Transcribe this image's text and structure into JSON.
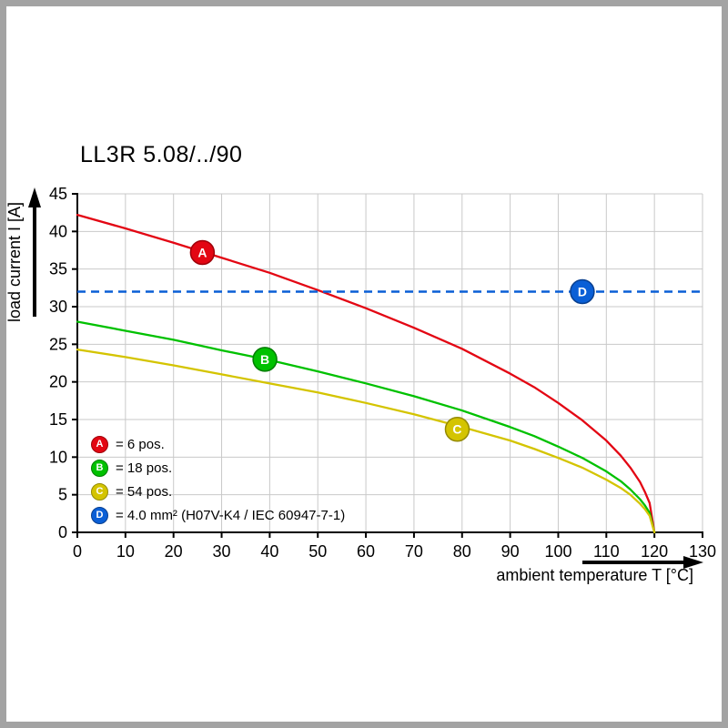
{
  "page": {
    "title": "LL3R 5.08/../90"
  },
  "chart_data": {
    "type": "line",
    "title": "LL3R 5.08/../90",
    "xlabel": "ambient temperature T [°C]",
    "ylabel": "load current I [A]",
    "xlim": [
      0,
      130
    ],
    "ylim": [
      0,
      45
    ],
    "x_ticks": [
      0,
      10,
      20,
      30,
      40,
      50,
      60,
      70,
      80,
      90,
      100,
      110,
      120,
      130
    ],
    "y_ticks": [
      0,
      5,
      10,
      15,
      20,
      25,
      30,
      35,
      40,
      45
    ],
    "grid": true,
    "grid_color": "#c9c9c9",
    "legend_position": "lower-left-inside",
    "series": [
      {
        "name": "A",
        "label": "= 6 pos.",
        "color": "#e30613",
        "edge": "#9e0009",
        "x": [
          0,
          10,
          20,
          30,
          40,
          50,
          60,
          70,
          80,
          90,
          95,
          100,
          105,
          110,
          113,
          115,
          117,
          118,
          119,
          120
        ],
        "y": [
          42.2,
          40.4,
          38.5,
          36.5,
          34.5,
          32.2,
          29.8,
          27.2,
          24.4,
          21.1,
          19.3,
          17.2,
          14.9,
          12.2,
          10.2,
          8.6,
          6.7,
          5.4,
          3.9,
          0
        ],
        "marker": {
          "x": 26,
          "y": 37.2
        }
      },
      {
        "name": "B",
        "label": "= 18 pos.",
        "color": "#00c100",
        "edge": "#007d00",
        "x": [
          0,
          10,
          20,
          30,
          40,
          50,
          60,
          70,
          80,
          90,
          95,
          100,
          105,
          110,
          113,
          115,
          117,
          118,
          119,
          120
        ],
        "y": [
          28,
          26.8,
          25.6,
          24.2,
          22.9,
          21.4,
          19.8,
          18.1,
          16.2,
          14.0,
          12.8,
          11.4,
          9.9,
          8.1,
          6.8,
          5.7,
          4.4,
          3.6,
          2.6,
          0
        ],
        "marker": {
          "x": 39,
          "y": 23
        }
      },
      {
        "name": "C",
        "label": "= 54 pos.",
        "color": "#d4c400",
        "edge": "#948a00",
        "x": [
          0,
          10,
          20,
          30,
          40,
          50,
          60,
          70,
          80,
          90,
          95,
          100,
          105,
          110,
          113,
          115,
          117,
          118,
          119,
          120
        ],
        "y": [
          24.3,
          23.3,
          22.2,
          21.0,
          19.8,
          18.6,
          17.2,
          15.7,
          14.0,
          12.2,
          11.1,
          9.9,
          8.6,
          7.0,
          5.9,
          5.0,
          3.8,
          3.1,
          2.2,
          0
        ],
        "marker": {
          "x": 79,
          "y": 13.7
        }
      },
      {
        "name": "D",
        "label": "= 4.0 mm² (H07V-K4 / IEC 60947-7-1)",
        "color": "#0a5fd6",
        "edge": "#083f8f",
        "style": "dashed-hline",
        "value": 32,
        "marker": {
          "x": 105,
          "y": 32
        }
      }
    ]
  }
}
